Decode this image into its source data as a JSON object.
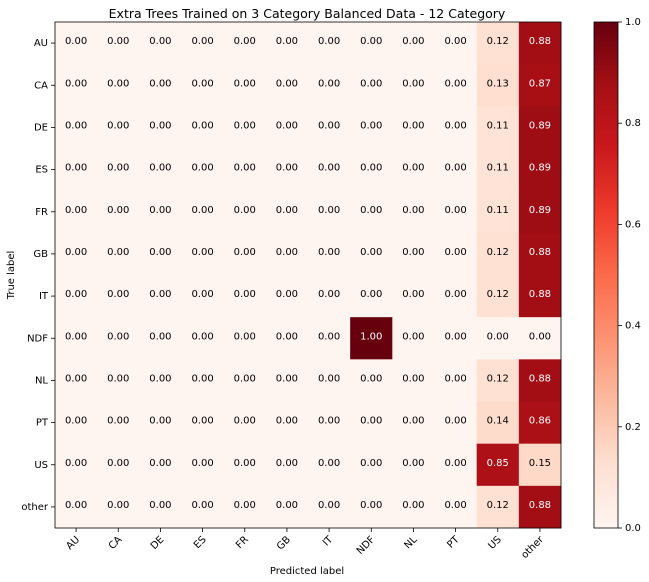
{
  "chart_data": {
    "type": "heatmap",
    "title": "Extra Trees Trained on 3 Category Balanced Data - 12 Category",
    "xlabel": "Predicted label",
    "ylabel": "True label",
    "x_categories": [
      "AU",
      "CA",
      "DE",
      "ES",
      "FR",
      "GB",
      "IT",
      "NDF",
      "NL",
      "PT",
      "US",
      "other"
    ],
    "y_categories": [
      "AU",
      "CA",
      "DE",
      "ES",
      "FR",
      "GB",
      "IT",
      "NDF",
      "NL",
      "PT",
      "US",
      "other"
    ],
    "values": [
      [
        0.0,
        0.0,
        0.0,
        0.0,
        0.0,
        0.0,
        0.0,
        0.0,
        0.0,
        0.0,
        0.12,
        0.88
      ],
      [
        0.0,
        0.0,
        0.0,
        0.0,
        0.0,
        0.0,
        0.0,
        0.0,
        0.0,
        0.0,
        0.13,
        0.87
      ],
      [
        0.0,
        0.0,
        0.0,
        0.0,
        0.0,
        0.0,
        0.0,
        0.0,
        0.0,
        0.0,
        0.11,
        0.89
      ],
      [
        0.0,
        0.0,
        0.0,
        0.0,
        0.0,
        0.0,
        0.0,
        0.0,
        0.0,
        0.0,
        0.11,
        0.89
      ],
      [
        0.0,
        0.0,
        0.0,
        0.0,
        0.0,
        0.0,
        0.0,
        0.0,
        0.0,
        0.0,
        0.11,
        0.89
      ],
      [
        0.0,
        0.0,
        0.0,
        0.0,
        0.0,
        0.0,
        0.0,
        0.0,
        0.0,
        0.0,
        0.12,
        0.88
      ],
      [
        0.0,
        0.0,
        0.0,
        0.0,
        0.0,
        0.0,
        0.0,
        0.0,
        0.0,
        0.0,
        0.12,
        0.88
      ],
      [
        0.0,
        0.0,
        0.0,
        0.0,
        0.0,
        0.0,
        0.0,
        1.0,
        0.0,
        0.0,
        0.0,
        0.0
      ],
      [
        0.0,
        0.0,
        0.0,
        0.0,
        0.0,
        0.0,
        0.0,
        0.0,
        0.0,
        0.0,
        0.12,
        0.88
      ],
      [
        0.0,
        0.0,
        0.0,
        0.0,
        0.0,
        0.0,
        0.0,
        0.0,
        0.0,
        0.0,
        0.14,
        0.86
      ],
      [
        0.0,
        0.0,
        0.0,
        0.0,
        0.0,
        0.0,
        0.0,
        0.0,
        0.0,
        0.0,
        0.85,
        0.15
      ],
      [
        0.0,
        0.0,
        0.0,
        0.0,
        0.0,
        0.0,
        0.0,
        0.0,
        0.0,
        0.0,
        0.12,
        0.88
      ]
    ],
    "value_range": [
      0.0,
      1.0
    ],
    "colormap": "Reds",
    "colorbar_ticks": [
      "0.0",
      "0.2",
      "0.4",
      "0.6",
      "0.8",
      "1.0"
    ],
    "grid": false
  }
}
